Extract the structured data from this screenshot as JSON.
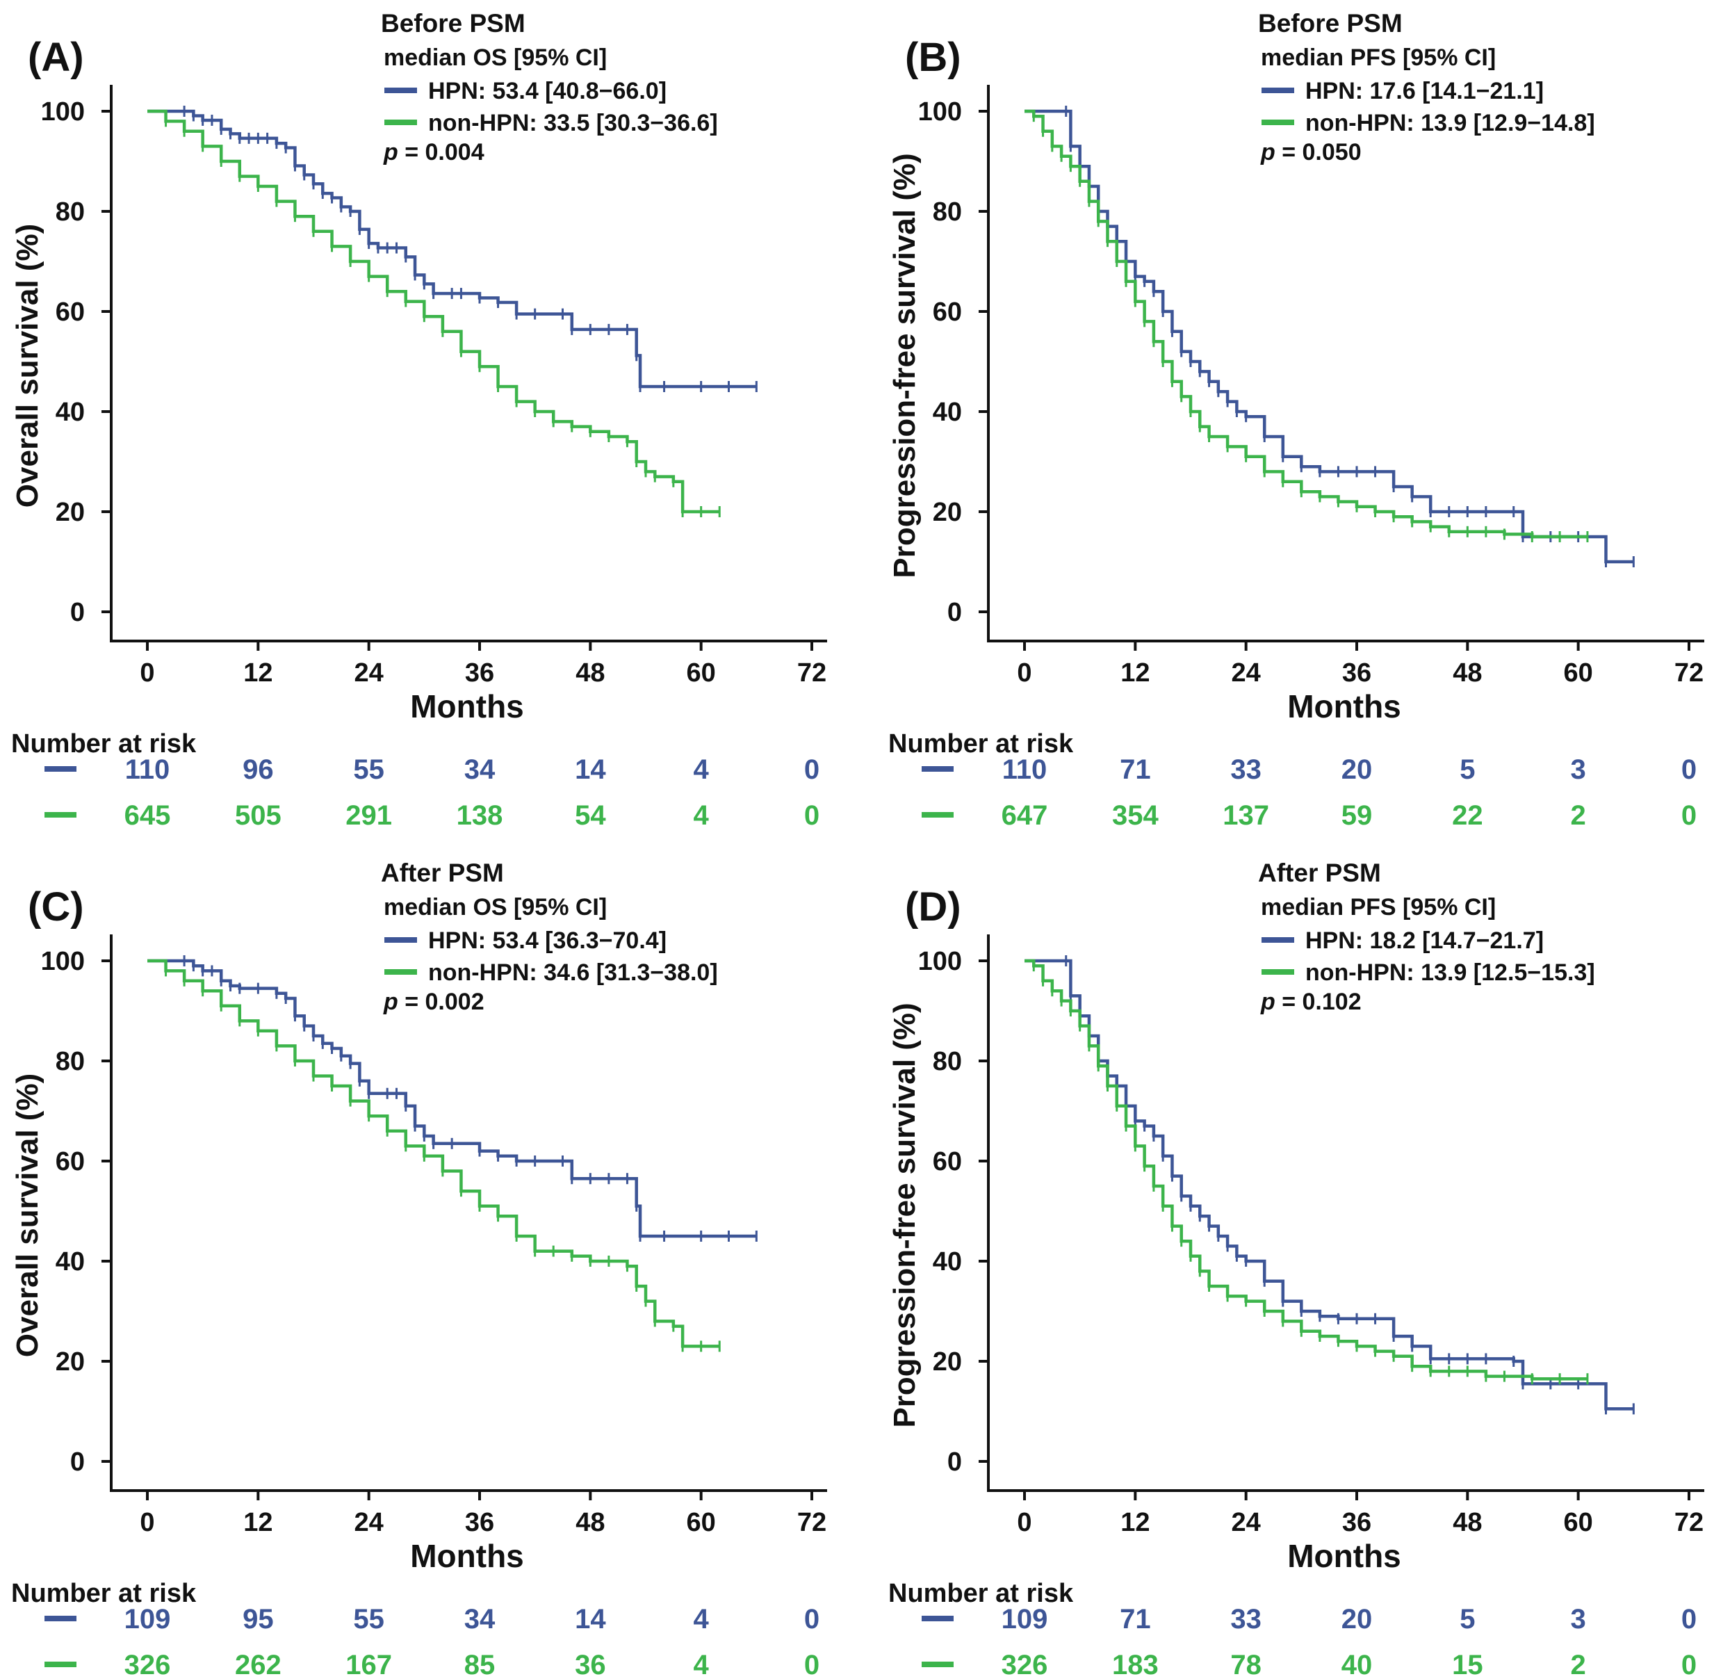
{
  "colors": {
    "hpn": "#3D5596",
    "non_hpn": "#3CB44B",
    "axis": "#111111"
  },
  "common": {
    "xlabel": "Months",
    "x_ticks": [
      0,
      12,
      24,
      36,
      48,
      60,
      72
    ],
    "y_ticks": [
      0,
      20,
      40,
      60,
      80,
      100
    ],
    "xlim": [
      0,
      72
    ],
    "ylim": [
      0,
      100
    ],
    "risk_title": "Number at risk",
    "series_names": [
      "HPN",
      "non-HPN"
    ]
  },
  "chart_data": [
    {
      "type": "line",
      "panel": "(A)",
      "title": "Before PSM",
      "subtitle": "median OS [95% CI]",
      "ylabel": "Overall survival (%)",
      "xlabel": "Months",
      "xlim": [
        0,
        72
      ],
      "ylim": [
        0,
        100
      ],
      "legend_text": [
        "HPN: 53.4 [40.8−66.0]",
        "non-HPN: 33.5 [30.3−36.6]"
      ],
      "p_value": "= 0.004",
      "series": [
        {
          "name": "HPN",
          "x": [
            0,
            4,
            5,
            6,
            7,
            8,
            9,
            10,
            11,
            12,
            13,
            14,
            15,
            16,
            17,
            18,
            19,
            20,
            21,
            22,
            23,
            24,
            25,
            26,
            27,
            28,
            29,
            30,
            31,
            33,
            34,
            36,
            38,
            40,
            42,
            45,
            46,
            48,
            50,
            52,
            53,
            53.4,
            56,
            60,
            63,
            66
          ],
          "y": [
            100,
            100,
            99.1,
            98.2,
            98.2,
            96.4,
            95.5,
            94.6,
            94.6,
            94.6,
            94.6,
            93.6,
            92.7,
            89.1,
            87.3,
            85.5,
            83.6,
            82.7,
            80.9,
            80,
            76.4,
            73.6,
            72.7,
            72.7,
            72.7,
            70.9,
            67.3,
            65.5,
            63.6,
            63.6,
            63.6,
            62.7,
            61.8,
            59.5,
            59.5,
            59.5,
            56.4,
            56.4,
            56.4,
            56.4,
            51.2,
            45,
            45,
            45,
            45,
            45
          ]
        },
        {
          "name": "non-HPN",
          "x": [
            0,
            2,
            4,
            6,
            8,
            10,
            12,
            14,
            16,
            18,
            20,
            22,
            24,
            26,
            28,
            30,
            32,
            34,
            36,
            38,
            40,
            42,
            44,
            46,
            48,
            50,
            52,
            53,
            54,
            55,
            57,
            58,
            60,
            62
          ],
          "y": [
            100,
            98,
            96,
            93,
            90,
            87,
            85,
            82,
            79,
            76,
            73,
            70,
            67,
            64,
            62,
            59,
            56,
            52,
            49,
            45,
            42,
            40,
            38,
            37,
            36,
            35,
            34,
            30,
            28,
            27,
            26,
            20,
            20,
            20
          ]
        }
      ],
      "risk": {
        "HPN": [
          110,
          96,
          55,
          34,
          14,
          4,
          0
        ],
        "non-HPN": [
          645,
          505,
          291,
          138,
          54,
          4,
          0
        ]
      }
    },
    {
      "type": "line",
      "panel": "(B)",
      "title": "Before PSM",
      "subtitle": "median PFS [95% CI]",
      "ylabel": "Progression-free survival (%)",
      "xlabel": "Months",
      "xlim": [
        0,
        72
      ],
      "ylim": [
        0,
        100
      ],
      "legend_text": [
        "HPN: 17.6 [14.1−21.1]",
        "non-HPN: 13.9 [12.9−14.8]"
      ],
      "p_value": "= 0.050",
      "series": [
        {
          "name": "HPN",
          "x": [
            0,
            4.5,
            5,
            6,
            7,
            8,
            9,
            10,
            11,
            12,
            13,
            14,
            15,
            16,
            17,
            18,
            19,
            20,
            21,
            22,
            23,
            24,
            26,
            28,
            30,
            32,
            34,
            36,
            38,
            40,
            42,
            44,
            46,
            48,
            50,
            53,
            54,
            57,
            60,
            63,
            66
          ],
          "y": [
            100,
            100,
            93,
            89,
            85,
            80,
            77,
            74,
            70,
            67,
            66,
            64,
            60,
            56,
            52,
            50,
            48,
            46,
            44,
            42,
            40,
            39,
            35,
            31,
            29,
            28,
            28,
            28,
            28,
            25,
            23,
            20,
            20,
            20,
            20,
            20,
            15,
            15,
            15,
            10,
            10
          ]
        },
        {
          "name": "non-HPN",
          "x": [
            0,
            1,
            2,
            3,
            4,
            5,
            6,
            7,
            8,
            9,
            10,
            11,
            12,
            13,
            14,
            15,
            16,
            17,
            18,
            19,
            20,
            22,
            24,
            26,
            28,
            30,
            32,
            34,
            36,
            38,
            40,
            42,
            44,
            46,
            48,
            50,
            52,
            55,
            58,
            61
          ],
          "y": [
            100,
            99,
            96,
            93,
            91,
            89,
            86,
            82,
            78,
            74,
            70,
            66,
            62,
            58,
            54,
            50,
            46,
            43,
            40,
            37,
            35,
            33,
            31,
            28,
            26,
            24,
            23,
            22,
            21,
            20,
            19,
            18,
            17,
            16,
            16,
            16,
            15.5,
            15,
            15,
            15
          ]
        }
      ],
      "risk": {
        "HPN": [
          110,
          71,
          33,
          20,
          5,
          3,
          0
        ],
        "non-HPN": [
          647,
          354,
          137,
          59,
          22,
          2,
          0
        ]
      }
    },
    {
      "type": "line",
      "panel": "(C)",
      "title": "After PSM",
      "subtitle": "median OS [95% CI]",
      "ylabel": "Overall survival (%)",
      "xlabel": "Months",
      "xlim": [
        0,
        72
      ],
      "ylim": [
        0,
        100
      ],
      "legend_text": [
        "HPN: 53.4 [36.3−70.4]",
        "non-HPN: 34.6 [31.3−38.0]"
      ],
      "p_value": "= 0.002",
      "series": [
        {
          "name": "HPN",
          "x": [
            0,
            4,
            5,
            6,
            7,
            8,
            9,
            10,
            12,
            14,
            15,
            16,
            17,
            18,
            19,
            20,
            21,
            22,
            23,
            24,
            26,
            27,
            28,
            29,
            30,
            31,
            33,
            36,
            38,
            40,
            42,
            45,
            46,
            48,
            50,
            52,
            53,
            53.4,
            56,
            60,
            63,
            66
          ],
          "y": [
            100,
            100,
            99,
            98,
            98,
            96,
            95,
            94.5,
            94.5,
            93.5,
            92.5,
            89,
            87,
            85,
            83.5,
            82.5,
            81,
            79.5,
            76,
            73.5,
            73.5,
            73.5,
            71,
            67,
            65,
            63.5,
            63.5,
            62,
            61,
            60,
            60,
            60,
            56.5,
            56.5,
            56.5,
            56.5,
            51,
            45,
            45,
            45,
            45,
            45
          ]
        },
        {
          "name": "non-HPN",
          "x": [
            0,
            2,
            4,
            6,
            8,
            10,
            12,
            14,
            16,
            18,
            20,
            22,
            24,
            26,
            28,
            30,
            32,
            34,
            36,
            38,
            40,
            42,
            44,
            46,
            48,
            50,
            52,
            53,
            54,
            55,
            57,
            58,
            60,
            62
          ],
          "y": [
            100,
            98,
            96,
            94,
            91,
            88,
            86,
            83,
            80,
            77,
            75,
            72,
            69,
            66,
            63,
            61,
            58,
            54,
            51,
            49,
            45,
            42,
            42,
            41,
            40,
            40,
            39,
            35,
            32,
            28,
            27,
            23,
            23,
            23
          ]
        }
      ],
      "risk": {
        "HPN": [
          109,
          95,
          55,
          34,
          14,
          4,
          0
        ],
        "non-HPN": [
          326,
          262,
          167,
          85,
          36,
          4,
          0
        ]
      }
    },
    {
      "type": "line",
      "panel": "(D)",
      "title": "After PSM",
      "subtitle": "median PFS [95% CI]",
      "ylabel": "Progression-free survival (%)",
      "xlabel": "Months",
      "xlim": [
        0,
        72
      ],
      "ylim": [
        0,
        100
      ],
      "legend_text": [
        "HPN: 18.2 [14.7−21.7]",
        "non-HPN: 13.9 [12.5−15.3]"
      ],
      "p_value": "= 0.102",
      "series": [
        {
          "name": "HPN",
          "x": [
            0,
            4.5,
            5,
            6,
            7,
            8,
            9,
            10,
            11,
            12,
            13,
            14,
            15,
            16,
            17,
            18,
            19,
            20,
            21,
            22,
            23,
            24,
            26,
            28,
            30,
            32,
            34,
            36,
            38,
            40,
            42,
            44,
            46,
            48,
            50,
            53,
            54,
            57,
            60,
            63,
            66
          ],
          "y": [
            100,
            100,
            93,
            89,
            85,
            80,
            77,
            75,
            71,
            68,
            67,
            65,
            61,
            57,
            53,
            51,
            49,
            47,
            45,
            43,
            41,
            40,
            36,
            32,
            30,
            29,
            28.5,
            28.5,
            28.5,
            25,
            23,
            20.5,
            20.5,
            20.5,
            20.5,
            20,
            15.5,
            15.5,
            15.5,
            10.5,
            10.5
          ]
        },
        {
          "name": "non-HPN",
          "x": [
            0,
            1,
            2,
            3,
            4,
            5,
            6,
            7,
            8,
            9,
            10,
            11,
            12,
            13,
            14,
            15,
            16,
            17,
            18,
            19,
            20,
            22,
            24,
            26,
            28,
            30,
            32,
            34,
            36,
            38,
            40,
            42,
            44,
            46,
            48,
            50,
            52,
            55,
            58,
            61
          ],
          "y": [
            100,
            99,
            96,
            94,
            92,
            90,
            87,
            83,
            79,
            75,
            71,
            67,
            63,
            59,
            55,
            51,
            47,
            44,
            41,
            38,
            35,
            33,
            32,
            30,
            28,
            26,
            25,
            24,
            23,
            22,
            21,
            19,
            18,
            18,
            18,
            17,
            17,
            16.5,
            16.5,
            16.5
          ]
        }
      ],
      "risk": {
        "HPN": [
          109,
          71,
          33,
          20,
          5,
          3,
          0
        ],
        "non-HPN": [
          326,
          183,
          78,
          40,
          15,
          2,
          0
        ]
      }
    }
  ]
}
